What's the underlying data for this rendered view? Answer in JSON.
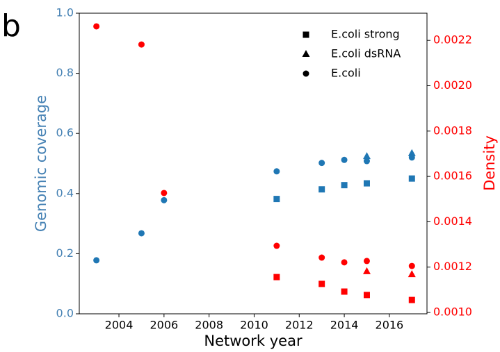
{
  "chart_data": {
    "type": "scatter",
    "panel_label": "b",
    "x_label": "Network year",
    "y_label": "Genomic coverage",
    "y2_label": "Density",
    "y_color": "#4682b4",
    "y2_color": "#ff0000",
    "legend_color": "#000000",
    "legend": "upper right",
    "xlim": [
      2002.24,
      2017.67
    ],
    "xticks": [
      2004,
      2006,
      2008,
      2010,
      2012,
      2014,
      2016
    ],
    "ylim": [
      0,
      1.0
    ],
    "yticks": [
      {
        "value": 0,
        "label": "0.0"
      },
      {
        "value": 0.2,
        "label": "0.2"
      },
      {
        "value": 0.4,
        "label": "0.4"
      },
      {
        "value": 0.6,
        "label": "0.6"
      },
      {
        "value": 0.8,
        "label": "0.8"
      },
      {
        "value": 1.0,
        "label": "1.0"
      }
    ],
    "y2lim": [
      0.000994,
      0.00232
    ],
    "y2ticks": [
      {
        "value": 0.001,
        "label": "0.0010"
      },
      {
        "value": 0.0012,
        "label": "0.0012"
      },
      {
        "value": 0.0014,
        "label": "0.0014"
      },
      {
        "value": 0.0016,
        "label": "0.0016"
      },
      {
        "value": 0.0018,
        "label": "0.0018"
      },
      {
        "value": 0.002,
        "label": "0.0020"
      },
      {
        "value": 0.0022,
        "label": "0.0022"
      }
    ],
    "series": [
      {
        "name": "E.coli strong",
        "marker": "square",
        "color": "#1f77b4",
        "axis": "y",
        "x": [
          2011,
          2013,
          2014,
          2015,
          2017
        ],
        "values": [
          0.382,
          0.414,
          0.428,
          0.434,
          0.45
        ]
      },
      {
        "name": "E.coli dsRNA",
        "marker": "triangle",
        "color": "#1f77b4",
        "axis": "y",
        "x": [
          2015,
          2017
        ],
        "values": [
          0.524,
          0.534
        ]
      },
      {
        "name": "E.coli",
        "marker": "circle",
        "color": "#1f77b4",
        "axis": "y",
        "x": [
          2003,
          2005,
          2006,
          2011,
          2013,
          2014,
          2015,
          2017
        ],
        "values": [
          0.178,
          0.268,
          0.378,
          0.474,
          0.502,
          0.512,
          0.508,
          0.52
        ]
      },
      {
        "name": "E.coli strong",
        "marker": "square",
        "color": "#ff0000",
        "axis": "y2",
        "x": [
          2011,
          2013,
          2014,
          2015,
          2017
        ],
        "values": [
          0.001156,
          0.001126,
          0.001092,
          0.001077,
          0.001055
        ]
      },
      {
        "name": "E.coli dsRNA",
        "marker": "triangle",
        "color": "#ff0000",
        "axis": "y2",
        "x": [
          2015,
          2017
        ],
        "values": [
          0.001181,
          0.001168
        ]
      },
      {
        "name": "E.coli",
        "marker": "circle",
        "color": "#ff0000",
        "axis": "y2",
        "x": [
          2003,
          2005,
          2006,
          2011,
          2013,
          2014,
          2015,
          2017
        ],
        "values": [
          0.002262,
          0.002182,
          0.001527,
          0.001294,
          0.001242,
          0.001221,
          0.001227,
          0.001205
        ]
      }
    ]
  }
}
